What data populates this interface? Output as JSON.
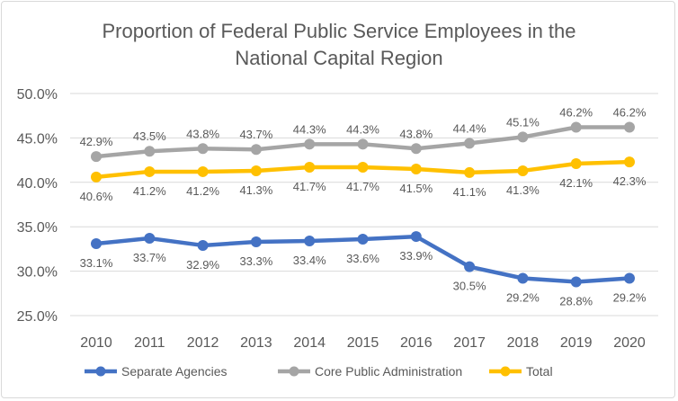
{
  "chart_data": {
    "type": "line",
    "title_lines": [
      "Proportion of Federal Public Service Employees in the",
      "National Capital Region"
    ],
    "xlabel": "",
    "ylabel": "",
    "x": [
      "2010",
      "2011",
      "2012",
      "2013",
      "2014",
      "2015",
      "2016",
      "2017",
      "2018",
      "2019",
      "2020"
    ],
    "ylim": [
      25,
      50
    ],
    "yticks": [
      25,
      30,
      35,
      40,
      45,
      50
    ],
    "ytick_labels": [
      "25.0%",
      "30.0%",
      "35.0%",
      "40.0%",
      "45.0%",
      "50.0%"
    ],
    "grid": true,
    "legend_position": "bottom",
    "series": [
      {
        "name": "Separate Agencies",
        "color": "#4472C4",
        "label_pos": "below",
        "values": [
          33.1,
          33.7,
          32.9,
          33.3,
          33.4,
          33.6,
          33.9,
          30.5,
          29.2,
          28.8,
          29.2
        ],
        "labels": [
          "33.1%",
          "33.7%",
          "32.9%",
          "33.3%",
          "33.4%",
          "33.6%",
          "33.9%",
          "30.5%",
          "29.2%",
          "28.8%",
          "29.2%"
        ]
      },
      {
        "name": "Core Public Administration",
        "color": "#A5A5A5",
        "label_pos": "above",
        "values": [
          42.9,
          43.5,
          43.8,
          43.7,
          44.3,
          44.3,
          43.8,
          44.4,
          45.1,
          46.2,
          46.2
        ],
        "labels": [
          "42.9%",
          "43.5%",
          "43.8%",
          "43.7%",
          "44.3%",
          "44.3%",
          "43.8%",
          "44.4%",
          "45.1%",
          "46.2%",
          "46.2%"
        ]
      },
      {
        "name": "Total",
        "color": "#FFC000",
        "label_pos": "below",
        "values": [
          40.6,
          41.2,
          41.2,
          41.3,
          41.7,
          41.7,
          41.5,
          41.1,
          41.3,
          42.1,
          42.3
        ],
        "labels": [
          "40.6%",
          "41.2%",
          "41.2%",
          "41.3%",
          "41.7%",
          "41.7%",
          "41.5%",
          "41.1%",
          "41.3%",
          "42.1%",
          "42.3%"
        ]
      }
    ]
  }
}
